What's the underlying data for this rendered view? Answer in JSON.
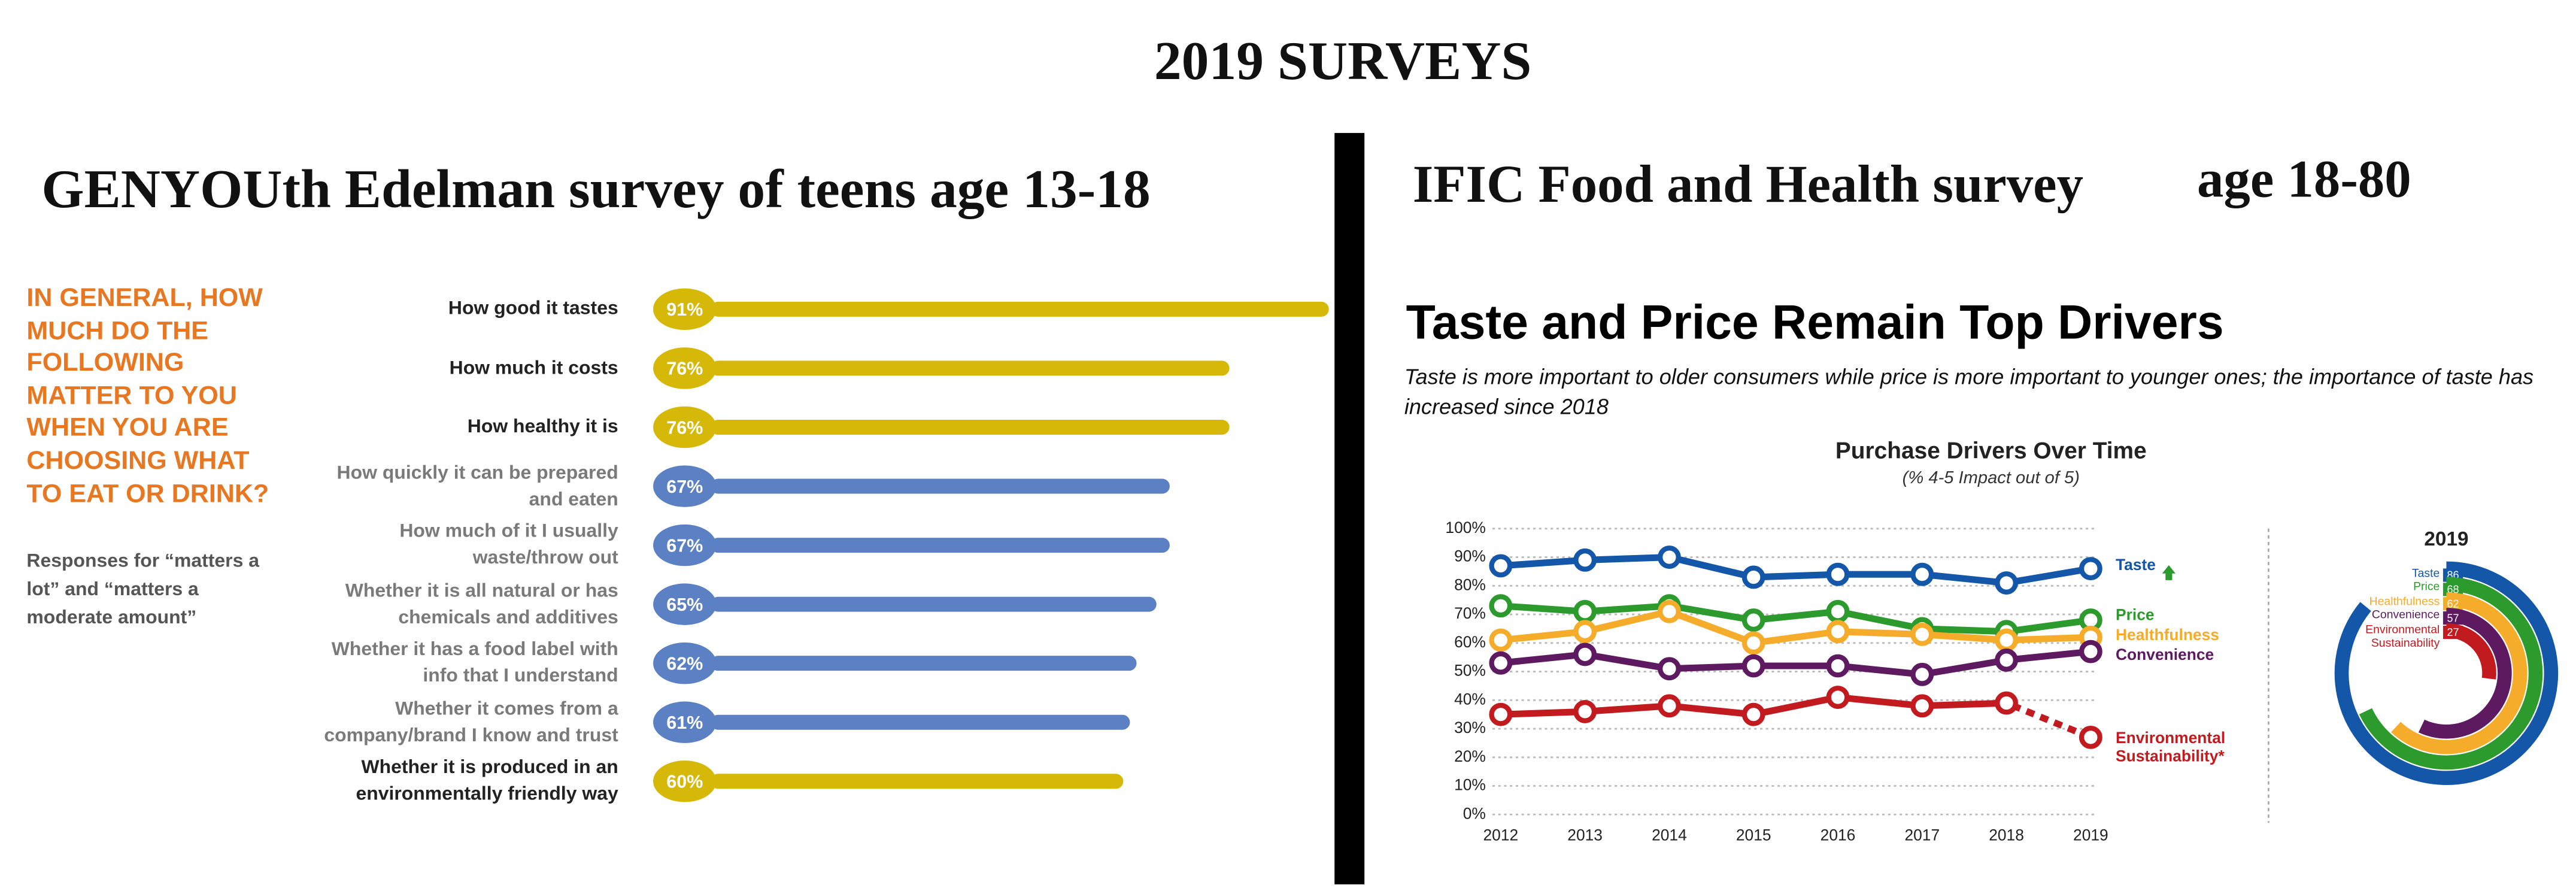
{
  "title": "2019 SURVEYS",
  "chart_data": [
    {
      "type": "hbar",
      "heading": "GENYOUth Edelman survey of teens age 13-18",
      "question": "IN GENERAL, HOW MUCH DO THE FOLLOWING MATTER TO YOU WHEN YOU ARE CHOOSING WHAT TO EAT OR DRINK?",
      "note": "Responses for “matters a lot” and “matters a moderate amount”",
      "categories": [
        "How good it tastes",
        "How much it costs",
        "How healthy it is",
        "How quickly it can be prepared and eaten",
        "How much of it I usually waste/throw out",
        "Whether it is all natural or has chemicals and additives",
        "Whether it has a food label with info that I understand",
        "Whether it comes from a company/brand I know and trust",
        "Whether it is produced in an environmentally friendly way"
      ],
      "values": [
        91,
        76,
        76,
        67,
        67,
        65,
        62,
        61,
        60
      ],
      "value_labels": [
        "91%",
        "76%",
        "76%",
        "67%",
        "67%",
        "65%",
        "62%",
        "61%",
        "60%"
      ],
      "colors": [
        "#d6b808",
        "#d6b808",
        "#d6b808",
        "#5b80c4",
        "#5b80c4",
        "#5b80c4",
        "#5b80c4",
        "#5b80c4",
        "#d6b808"
      ],
      "label_colors": [
        "#222222",
        "#222222",
        "#222222",
        "#7a7a7a",
        "#7a7a7a",
        "#7a7a7a",
        "#7a7a7a",
        "#7a7a7a",
        "#222222"
      ]
    },
    {
      "type": "line",
      "heading": "IFIC Food and Health survey",
      "heading_age": "age 18-80",
      "title": "Taste and Price Remain Top Drivers",
      "subtitle": "Taste is more important to older consumers while price is more important to younger ones; the importance of taste has increased since 2018",
      "chart_title": "Purchase Drivers Over Time",
      "chart_subtitle": "(% 4-5 Impact out of 5)",
      "x": [
        2012,
        2013,
        2014,
        2015,
        2016,
        2017,
        2018,
        2019
      ],
      "ylim": [
        0,
        100
      ],
      "yticks": [
        {
          "value": 0,
          "label": "0%"
        },
        {
          "value": 10,
          "label": "10%"
        },
        {
          "value": 20,
          "label": "20%"
        },
        {
          "value": 30,
          "label": "30%"
        },
        {
          "value": 40,
          "label": "40%"
        },
        {
          "value": 50,
          "label": "50%"
        },
        {
          "value": 60,
          "label": "60%"
        },
        {
          "value": 70,
          "label": "70%"
        },
        {
          "value": 80,
          "label": "80%"
        },
        {
          "value": 90,
          "label": "90%"
        },
        {
          "value": 100,
          "label": "100%"
        }
      ],
      "grid": true,
      "series": [
        {
          "name": "Taste",
          "color": "#1456a8",
          "values": [
            87,
            89,
            90,
            83,
            84,
            84,
            81,
            86
          ]
        },
        {
          "name": "Price",
          "color": "#2c9a2c",
          "values": [
            73,
            71,
            73,
            68,
            71,
            65,
            64,
            68
          ]
        },
        {
          "name": "Healthfulness",
          "color": "#f5ac2a",
          "values": [
            61,
            64,
            71,
            60,
            64,
            63,
            61,
            62
          ]
        },
        {
          "name": "Convenience",
          "color": "#5e1a60",
          "values": [
            53,
            56,
            51,
            52,
            52,
            49,
            54,
            57
          ]
        },
        {
          "name": "Environmental Sustainability*",
          "color": "#c21b1f",
          "values": [
            35,
            36,
            38,
            35,
            41,
            38,
            39,
            27
          ],
          "dashed_last": true
        }
      ]
    },
    {
      "type": "radial",
      "title": "2019",
      "categories": [
        "Taste",
        "Price",
        "Healthfulness",
        "Convenience",
        "Environmental Sustainability"
      ],
      "values": [
        86,
        68,
        62,
        57,
        27
      ],
      "colors": [
        "#1456a8",
        "#2c9a2c",
        "#f5ac2a",
        "#5e1a60",
        "#c21b1f"
      ]
    }
  ]
}
